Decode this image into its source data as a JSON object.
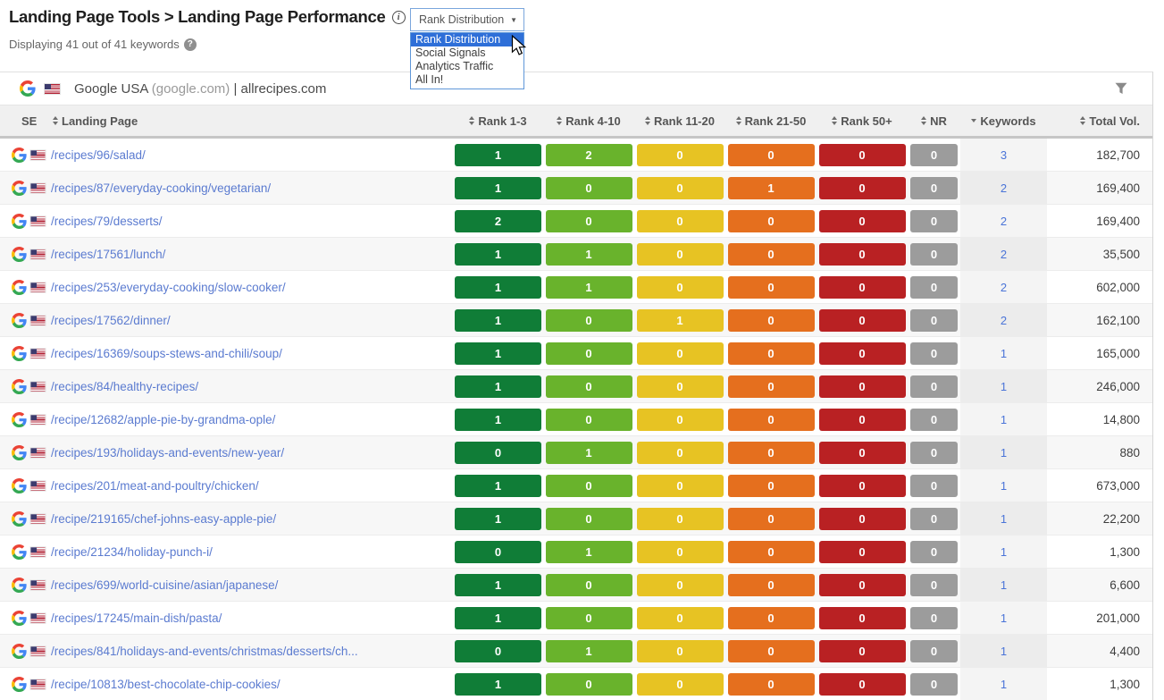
{
  "header": {
    "breadcrumb": "Landing Page Tools > Landing Page Performance",
    "displaying_text": "Displaying 41 out of 41 keywords",
    "view_select": {
      "value": "Rank Distribution",
      "options": [
        "Rank Distribution",
        "Social Signals",
        "Analytics Traffic",
        "All In!"
      ],
      "highlighted_index": 0
    }
  },
  "icons": {
    "info": "i",
    "help": "?",
    "select_caret": "▼",
    "filter": "funnel-icon",
    "google": "google-g-logo",
    "us_flag": "us-flag",
    "sort_both": "up-down-arrows",
    "sort_desc": "down-arrow",
    "mouse_cursor": "arrow-pointer"
  },
  "source_bar": {
    "search_engine": "Google USA",
    "search_engine_domain": "(google.com)",
    "separator": " | ",
    "site": "allrecipes.com"
  },
  "colors": {
    "selection_blue": "#2e6fd8",
    "landing_link_blue": "#5b7bd0",
    "keywords_link_blue": "#4a74d8",
    "badge_text": "#ffffff"
  },
  "table": {
    "columns": [
      {
        "key": "se",
        "label": "SE",
        "sort": "none"
      },
      {
        "key": "landing_page",
        "label": "Landing Page",
        "sort": "both"
      },
      {
        "key": "rank_1_3",
        "label": "Rank 1-3",
        "sort": "both"
      },
      {
        "key": "rank_4_10",
        "label": "Rank 4-10",
        "sort": "both"
      },
      {
        "key": "rank_11_20",
        "label": "Rank 11-20",
        "sort": "both"
      },
      {
        "key": "rank_21_50",
        "label": "Rank 21-50",
        "sort": "both"
      },
      {
        "key": "rank_50_plus",
        "label": "Rank 50+",
        "sort": "both"
      },
      {
        "key": "nr",
        "label": "NR",
        "sort": "both"
      },
      {
        "key": "keywords",
        "label": "Keywords",
        "sort": "desc"
      },
      {
        "key": "total_vol",
        "label": "Total Vol.",
        "sort": "both"
      }
    ],
    "badge_colors": {
      "rank_1_3": "#107d37",
      "rank_4_10": "#69b32c",
      "rank_11_20": "#e7c323",
      "rank_21_50": "#e56f1e",
      "rank_50_plus": "#b92123",
      "nr": "#9c9c9c"
    },
    "rows": [
      {
        "landing_page": "/recipes/96/salad/",
        "rank_1_3": 1,
        "rank_4_10": 2,
        "rank_11_20": 0,
        "rank_21_50": 0,
        "rank_50_plus": 0,
        "nr": 0,
        "keywords": 3,
        "total_vol": "182,700"
      },
      {
        "landing_page": "/recipes/87/everyday-cooking/vegetarian/",
        "rank_1_3": 1,
        "rank_4_10": 0,
        "rank_11_20": 0,
        "rank_21_50": 1,
        "rank_50_plus": 0,
        "nr": 0,
        "keywords": 2,
        "total_vol": "169,400"
      },
      {
        "landing_page": "/recipes/79/desserts/",
        "rank_1_3": 2,
        "rank_4_10": 0,
        "rank_11_20": 0,
        "rank_21_50": 0,
        "rank_50_plus": 0,
        "nr": 0,
        "keywords": 2,
        "total_vol": "169,400"
      },
      {
        "landing_page": "/recipes/17561/lunch/",
        "rank_1_3": 1,
        "rank_4_10": 1,
        "rank_11_20": 0,
        "rank_21_50": 0,
        "rank_50_plus": 0,
        "nr": 0,
        "keywords": 2,
        "total_vol": "35,500"
      },
      {
        "landing_page": "/recipes/253/everyday-cooking/slow-cooker/",
        "rank_1_3": 1,
        "rank_4_10": 1,
        "rank_11_20": 0,
        "rank_21_50": 0,
        "rank_50_plus": 0,
        "nr": 0,
        "keywords": 2,
        "total_vol": "602,000"
      },
      {
        "landing_page": "/recipes/17562/dinner/",
        "rank_1_3": 1,
        "rank_4_10": 0,
        "rank_11_20": 1,
        "rank_21_50": 0,
        "rank_50_plus": 0,
        "nr": 0,
        "keywords": 2,
        "total_vol": "162,100"
      },
      {
        "landing_page": "/recipes/16369/soups-stews-and-chili/soup/",
        "rank_1_3": 1,
        "rank_4_10": 0,
        "rank_11_20": 0,
        "rank_21_50": 0,
        "rank_50_plus": 0,
        "nr": 0,
        "keywords": 1,
        "total_vol": "165,000"
      },
      {
        "landing_page": "/recipes/84/healthy-recipes/",
        "rank_1_3": 1,
        "rank_4_10": 0,
        "rank_11_20": 0,
        "rank_21_50": 0,
        "rank_50_plus": 0,
        "nr": 0,
        "keywords": 1,
        "total_vol": "246,000"
      },
      {
        "landing_page": "/recipe/12682/apple-pie-by-grandma-ople/",
        "rank_1_3": 1,
        "rank_4_10": 0,
        "rank_11_20": 0,
        "rank_21_50": 0,
        "rank_50_plus": 0,
        "nr": 0,
        "keywords": 1,
        "total_vol": "14,800"
      },
      {
        "landing_page": "/recipes/193/holidays-and-events/new-year/",
        "rank_1_3": 0,
        "rank_4_10": 1,
        "rank_11_20": 0,
        "rank_21_50": 0,
        "rank_50_plus": 0,
        "nr": 0,
        "keywords": 1,
        "total_vol": "880"
      },
      {
        "landing_page": "/recipes/201/meat-and-poultry/chicken/",
        "rank_1_3": 1,
        "rank_4_10": 0,
        "rank_11_20": 0,
        "rank_21_50": 0,
        "rank_50_plus": 0,
        "nr": 0,
        "keywords": 1,
        "total_vol": "673,000"
      },
      {
        "landing_page": "/recipe/219165/chef-johns-easy-apple-pie/",
        "rank_1_3": 1,
        "rank_4_10": 0,
        "rank_11_20": 0,
        "rank_21_50": 0,
        "rank_50_plus": 0,
        "nr": 0,
        "keywords": 1,
        "total_vol": "22,200"
      },
      {
        "landing_page": "/recipe/21234/holiday-punch-i/",
        "rank_1_3": 0,
        "rank_4_10": 1,
        "rank_11_20": 0,
        "rank_21_50": 0,
        "rank_50_plus": 0,
        "nr": 0,
        "keywords": 1,
        "total_vol": "1,300"
      },
      {
        "landing_page": "/recipes/699/world-cuisine/asian/japanese/",
        "rank_1_3": 1,
        "rank_4_10": 0,
        "rank_11_20": 0,
        "rank_21_50": 0,
        "rank_50_plus": 0,
        "nr": 0,
        "keywords": 1,
        "total_vol": "6,600"
      },
      {
        "landing_page": "/recipes/17245/main-dish/pasta/",
        "rank_1_3": 1,
        "rank_4_10": 0,
        "rank_11_20": 0,
        "rank_21_50": 0,
        "rank_50_plus": 0,
        "nr": 0,
        "keywords": 1,
        "total_vol": "201,000"
      },
      {
        "landing_page": "/recipes/841/holidays-and-events/christmas/desserts/ch...",
        "rank_1_3": 0,
        "rank_4_10": 1,
        "rank_11_20": 0,
        "rank_21_50": 0,
        "rank_50_plus": 0,
        "nr": 0,
        "keywords": 1,
        "total_vol": "4,400"
      },
      {
        "landing_page": "/recipe/10813/best-chocolate-chip-cookies/",
        "rank_1_3": 1,
        "rank_4_10": 0,
        "rank_11_20": 0,
        "rank_21_50": 0,
        "rank_50_plus": 0,
        "nr": 0,
        "keywords": 1,
        "total_vol": "1,300"
      }
    ]
  }
}
